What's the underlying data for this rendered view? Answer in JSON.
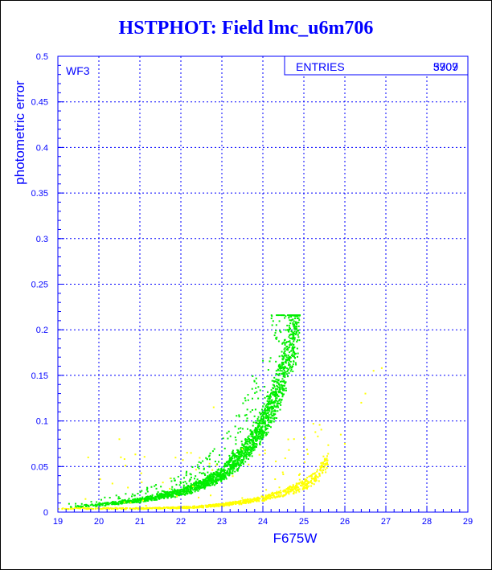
{
  "colors": {
    "frame": "#0000ff",
    "title": "#0000ff",
    "axis_text": "#0000ff",
    "grid": "#0000ff",
    "series_main": "#00ee00",
    "series_secondary": "#ffff00"
  },
  "chart_data": {
    "type": "scatter",
    "title": "HSTPHOT: Field lmc_u6m706",
    "xlabel": "F675W",
    "ylabel": "photometric error",
    "xlim": [
      19,
      29
    ],
    "ylim": [
      0,
      0.5
    ],
    "xticks": [
      "19",
      "20",
      "21",
      "22",
      "23",
      "24",
      "25",
      "26",
      "27",
      "28",
      "29"
    ],
    "yticks": [
      "0",
      "0.05",
      "0.1",
      "0.15",
      "0.2",
      "0.25",
      "0.3",
      "0.35",
      "0.4",
      "0.45",
      "0.5"
    ],
    "grid": true,
    "panel_label": "WF3",
    "stats_box": {
      "label": "ENTRIES",
      "values": [
        "5909",
        "3707"
      ],
      "position": "top-right"
    },
    "series": [
      {
        "color": "#00ee00",
        "count": 5909,
        "curve": [
          [
            19.0,
            0.005
          ],
          [
            20.0,
            0.008
          ],
          [
            21.0,
            0.013
          ],
          [
            22.0,
            0.022
          ],
          [
            22.5,
            0.03
          ],
          [
            23.0,
            0.042
          ],
          [
            23.5,
            0.062
          ],
          [
            24.0,
            0.095
          ],
          [
            24.3,
            0.125
          ],
          [
            24.5,
            0.155
          ],
          [
            24.7,
            0.19
          ],
          [
            24.9,
            0.215
          ]
        ],
        "scatter_above": true,
        "cutoff_x": 25.0,
        "cutoff_y": 0.216
      },
      {
        "color": "#ffff00",
        "count": 3707,
        "curve": [
          [
            19.0,
            0.004
          ],
          [
            20.0,
            0.004
          ],
          [
            21.0,
            0.004
          ],
          [
            22.0,
            0.005
          ],
          [
            22.5,
            0.006
          ],
          [
            23.0,
            0.008
          ],
          [
            23.5,
            0.011
          ],
          [
            24.0,
            0.015
          ],
          [
            24.5,
            0.021
          ],
          [
            25.0,
            0.03
          ],
          [
            25.3,
            0.04
          ],
          [
            25.6,
            0.055
          ]
        ],
        "scatter_above": true,
        "outliers": [
          [
            26.7,
            0.155
          ],
          [
            26.9,
            0.158
          ],
          [
            26.4,
            0.12
          ],
          [
            26.5,
            0.13
          ],
          [
            25.9,
            0.085
          ],
          [
            26.0,
            0.075
          ],
          [
            22.8,
            0.115
          ],
          [
            20.5,
            0.08
          ]
        ]
      }
    ]
  }
}
